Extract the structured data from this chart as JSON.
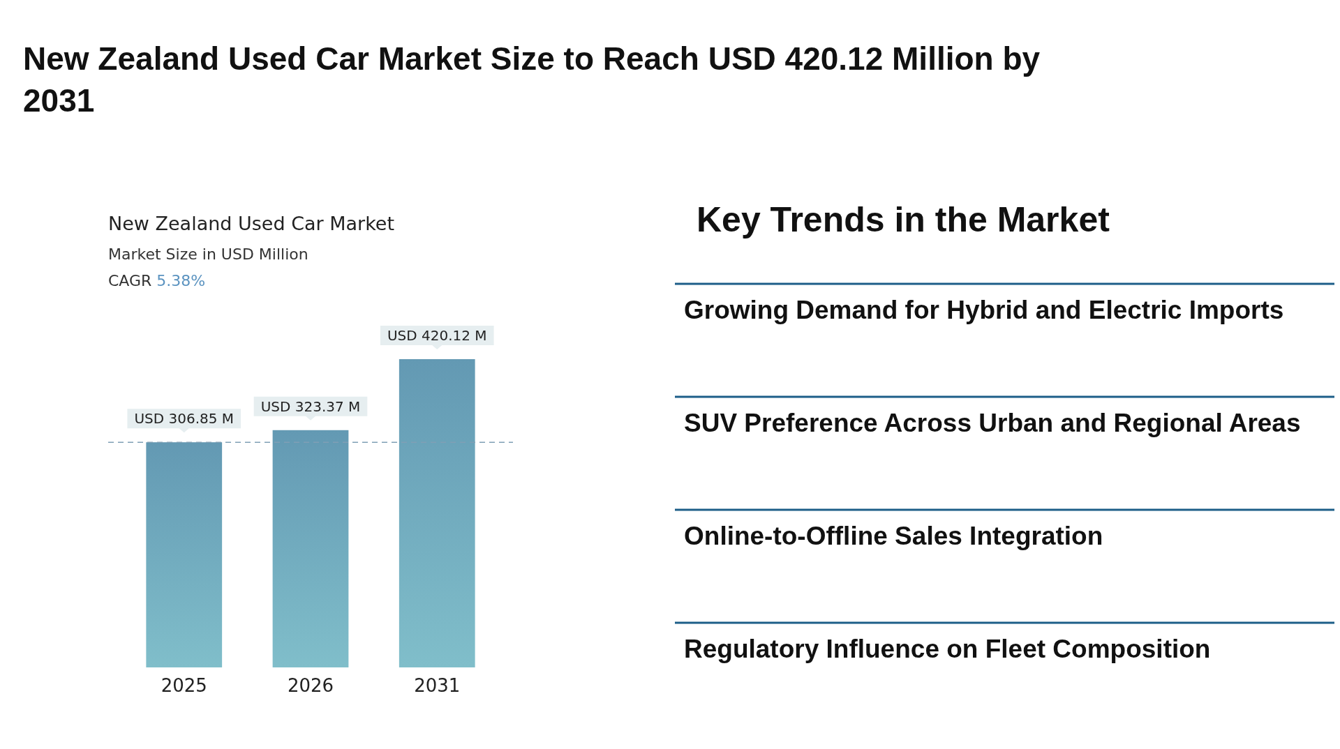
{
  "chart_data": [
    {
      "type": "other",
      "title": "New Zealand Used Car Market Size to Reach USD 420.12 Million by 2031"
    },
    {
      "type": "bar",
      "title": "New Zealand Used Car Market",
      "subtitle": "Market Size in USD Million",
      "annotations": [
        "CAGR 5.38%"
      ],
      "categories": [
        "2025",
        "2026",
        "2031"
      ],
      "values": [
        306.85,
        323.37,
        420.12
      ],
      "value_labels": [
        "USD 306.85 M",
        "USD 323.37 M",
        "USD 420.12 M"
      ],
      "color": "#6aa4c0",
      "ref_lines": [
        {
          "axis": "y",
          "value": 306.85,
          "color": "#7f9fb5",
          "line_style": "dashed"
        }
      ]
    },
    {
      "type": "other",
      "title": "Key Trends in the Market",
      "annotations": [
        "Growing Demand for Hybrid and Electric Imports",
        "SUV Preference Across Urban and Regional Areas",
        "Online-to-Offline Sales Integration",
        "Regulatory Influence on Fleet Composition"
      ]
    }
  ]
}
